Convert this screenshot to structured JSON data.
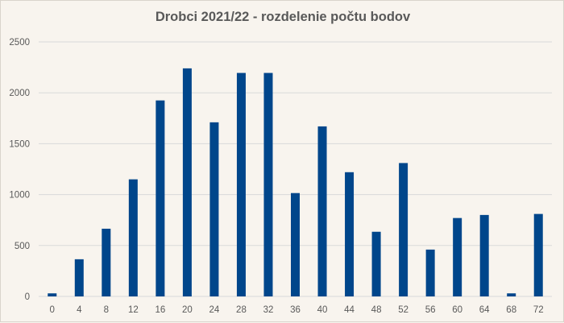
{
  "chart_data": {
    "type": "bar",
    "title": "Drobci 2021/22 - rozdelenie počtu bodov",
    "xlabel": "",
    "ylabel": "",
    "categories": [
      "0",
      "4",
      "8",
      "12",
      "16",
      "20",
      "24",
      "28",
      "32",
      "36",
      "40",
      "44",
      "48",
      "52",
      "56",
      "60",
      "64",
      "68",
      "72"
    ],
    "values": [
      30,
      365,
      665,
      1150,
      1925,
      2240,
      1710,
      2195,
      2195,
      1015,
      1670,
      1220,
      635,
      1310,
      460,
      770,
      800,
      30,
      810
    ],
    "ylim": [
      0,
      2500
    ],
    "yticks": [
      "0",
      "500",
      "1000",
      "1500",
      "2000",
      "2500"
    ],
    "grid": true,
    "legend": "none",
    "bar_color": "#00468b"
  }
}
